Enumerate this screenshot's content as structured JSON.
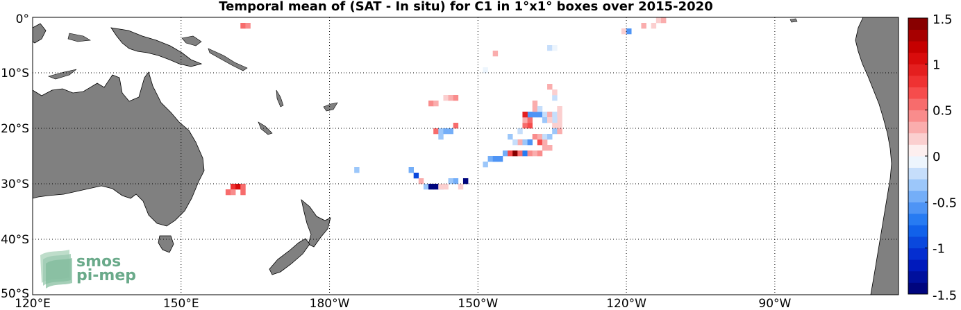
{
  "title": "Temporal mean of (SAT - In situ) for C1 in 1°x1° boxes over 2015-2020",
  "map": {
    "lon_range": [
      120,
      295
    ],
    "lat_range": [
      -50,
      0
    ],
    "x_ticks": [
      {
        "lon": 120,
        "label": "120°E"
      },
      {
        "lon": 150,
        "label": "150°E"
      },
      {
        "lon": 180,
        "label": "180°W"
      },
      {
        "lon": 210,
        "label": "150°W"
      },
      {
        "lon": 240,
        "label": "120°W"
      },
      {
        "lon": 270,
        "label": "90°W"
      }
    ],
    "y_ticks": [
      {
        "lat": 0,
        "label": "0°"
      },
      {
        "lat": -10,
        "label": "10°S"
      },
      {
        "lat": -20,
        "label": "20°S"
      },
      {
        "lat": -30,
        "label": "30°S"
      },
      {
        "lat": -40,
        "label": "40°S"
      },
      {
        "lat": -50,
        "label": "50°S"
      }
    ],
    "land_color": "#808080",
    "grid": "dotted"
  },
  "colorbar": {
    "range": [
      -1.5,
      1.5
    ],
    "ticks": [
      {
        "v": 1.5,
        "label": "1.5"
      },
      {
        "v": 1,
        "label": "1"
      },
      {
        "v": 0.5,
        "label": "0.5"
      },
      {
        "v": 0,
        "label": "0"
      },
      {
        "v": -0.5,
        "label": "-0.5"
      },
      {
        "v": -1,
        "label": "-1"
      },
      {
        "v": -1.5,
        "label": "-1.5"
      }
    ]
  },
  "logo": {
    "line1": "smos",
    "line2": "pi-mep"
  },
  "cells": [
    [
      162,
      -1,
      0.6
    ],
    [
      163,
      -1,
      0.4
    ],
    [
      160,
      -30,
      0.8
    ],
    [
      161,
      -30,
      1.1
    ],
    [
      162,
      -30,
      0.6
    ],
    [
      159,
      -31,
      0.5
    ],
    [
      160,
      -31,
      0.4
    ],
    [
      162,
      -31,
      0.6
    ],
    [
      185,
      -27,
      -0.3
    ],
    [
      200,
      -15,
      0.4
    ],
    [
      201,
      -15,
      0.3
    ],
    [
      203,
      -14,
      0.2
    ],
    [
      204,
      -14,
      0.3
    ],
    [
      205,
      -14,
      0.4
    ],
    [
      201,
      -20,
      0.6
    ],
    [
      202,
      -20,
      -0.3
    ],
    [
      203,
      -20,
      -0.4
    ],
    [
      204,
      -20,
      -0.5
    ],
    [
      205,
      -19,
      0.5
    ],
    [
      202,
      -21,
      -0.3
    ],
    [
      196,
      -27,
      -0.4
    ],
    [
      197,
      -28,
      -0.9
    ],
    [
      198,
      -29,
      0.3
    ],
    [
      199,
      -30,
      -0.3
    ],
    [
      200,
      -30,
      -1.4
    ],
    [
      201,
      -30,
      -1.5
    ],
    [
      202,
      -30,
      -0.3
    ],
    [
      203,
      -30,
      0.2
    ],
    [
      204,
      -29,
      -0.3
    ],
    [
      205,
      -29,
      -0.4
    ],
    [
      207,
      -29,
      -1.5
    ],
    [
      202,
      -30,
      0.2
    ],
    [
      206,
      -30,
      0.2
    ],
    [
      213,
      -6,
      0.3
    ],
    [
      211,
      -9,
      -0.1
    ],
    [
      211,
      -26,
      -0.3
    ],
    [
      212,
      -25,
      -0.4
    ],
    [
      213,
      -25,
      -0.6
    ],
    [
      214,
      -25,
      -0.6
    ],
    [
      215,
      -24,
      -0.4
    ],
    [
      216,
      -24,
      0.7
    ],
    [
      217,
      -24,
      1.4
    ],
    [
      218,
      -24,
      0.5
    ],
    [
      219,
      -24,
      -0.7
    ],
    [
      220,
      -24,
      0.4
    ],
    [
      221,
      -24,
      0.3
    ],
    [
      222,
      -24,
      0.4
    ],
    [
      223,
      -23,
      0.3
    ],
    [
      224,
      -23,
      0.3
    ],
    [
      218,
      -22,
      0.3
    ],
    [
      219,
      -22,
      -0.3
    ],
    [
      220,
      -22,
      -0.6
    ],
    [
      222,
      -22,
      0.7
    ],
    [
      223,
      -22,
      0.3
    ],
    [
      216,
      -21,
      -0.3
    ],
    [
      217,
      -22,
      -0.2
    ],
    [
      221,
      -21,
      0.4
    ],
    [
      222,
      -21,
      0.3
    ],
    [
      223,
      -21,
      -0.2
    ],
    [
      224,
      -21,
      -0.3
    ],
    [
      218,
      -20,
      -0.2
    ],
    [
      219,
      -19,
      0.6
    ],
    [
      220,
      -19,
      0.7
    ],
    [
      219,
      -18,
      0.3
    ],
    [
      220,
      -18,
      0.5
    ],
    [
      220,
      -17,
      -0.6
    ],
    [
      219,
      -17,
      0.9
    ],
    [
      221,
      -17,
      -0.6
    ],
    [
      222,
      -17,
      -0.6
    ],
    [
      223,
      -17,
      -0.2
    ],
    [
      224,
      -17,
      0.3
    ],
    [
      225,
      -17,
      -0.2
    ],
    [
      226,
      -17,
      0.2
    ],
    [
      226,
      -18,
      0.2
    ],
    [
      226,
      -16,
      0.2
    ],
    [
      225,
      -18,
      -0.2
    ],
    [
      225,
      -19,
      0.2
    ],
    [
      226,
      -19,
      0.2
    ],
    [
      225,
      -20,
      -0.3
    ],
    [
      226,
      -20,
      0.3
    ],
    [
      223,
      -18,
      -0.3
    ],
    [
      224,
      -18,
      0.2
    ],
    [
      225,
      -14,
      -0.2
    ],
    [
      224,
      -12,
      0.3
    ],
    [
      225,
      -13,
      0.2
    ],
    [
      221,
      -15,
      0.3
    ],
    [
      221,
      -16,
      0.3
    ],
    [
      222,
      -16,
      -0.2
    ],
    [
      224,
      -5,
      -0.2
    ],
    [
      225,
      -5,
      -0.1
    ],
    [
      239,
      -2,
      0.2
    ],
    [
      240,
      -2,
      -0.6
    ],
    [
      243,
      -1,
      0.3
    ],
    [
      245,
      -1,
      0.2
    ],
    [
      246,
      0,
      0.2
    ],
    [
      247,
      0,
      0.3
    ]
  ]
}
